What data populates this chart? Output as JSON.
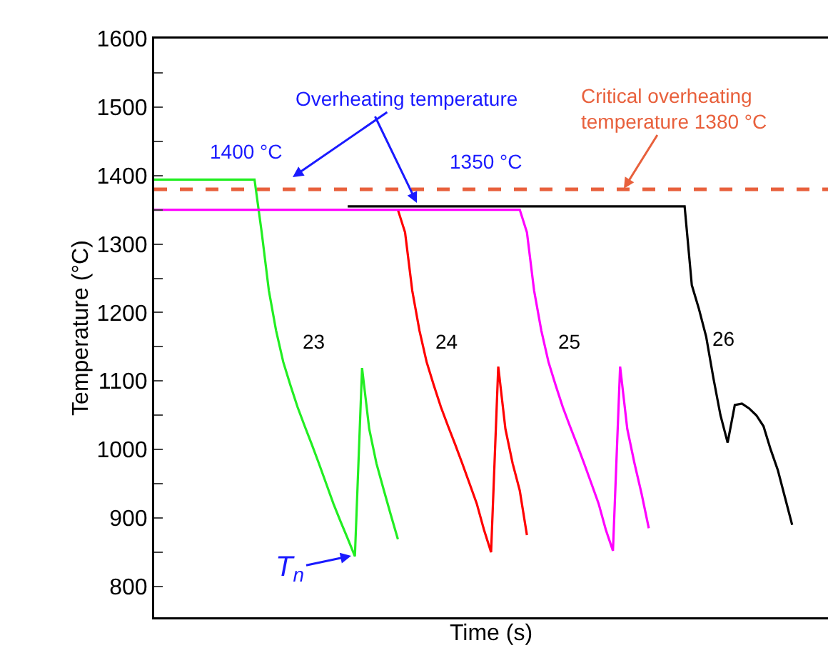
{
  "chart_data": {
    "type": "line",
    "xlabel": "Time (s)",
    "ylabel": "Temperature (°C)",
    "categories": [
      null,
      null,
      null,
      null,
      null,
      null,
      null,
      null,
      null,
      null,
      null,
      null,
      null,
      null,
      null,
      null,
      null,
      null,
      null,
      null,
      null,
      null,
      null,
      null,
      null,
      null,
      null,
      null,
      null,
      null,
      null,
      null,
      null,
      null,
      null,
      null,
      null,
      null,
      null,
      null,
      null,
      null,
      null,
      null,
      null,
      null,
      null,
      null,
      null,
      null,
      null,
      null,
      null,
      null,
      null,
      null,
      null,
      null,
      null,
      null,
      null,
      null,
      null,
      null,
      null,
      null,
      null,
      null,
      null,
      null,
      null,
      null,
      null,
      null,
      null,
      null,
      null,
      null,
      null,
      null,
      null,
      null,
      null,
      null,
      null,
      null,
      null,
      null,
      null,
      null,
      null,
      null,
      null,
      null,
      null
    ],
    "series": [
      {
        "color": "#22ee22",
        "values": [
          1394,
          1394,
          1394,
          1394,
          1394,
          1394,
          1394,
          1394,
          1394,
          1394,
          1394,
          1394,
          1394,
          1394,
          1394,
          1317,
          1232,
          1174,
          1128,
          1094,
          1062,
          1034,
          1007,
          979,
          950,
          921,
          895,
          870,
          844,
          1119,
          1030,
          980,
          942,
          905,
          869,
          null,
          null,
          null,
          null,
          null,
          null,
          null,
          null,
          null,
          null,
          null,
          null,
          null,
          null,
          null,
          null,
          null,
          null,
          null,
          null,
          null,
          null,
          null,
          null,
          null,
          null,
          null,
          null,
          null,
          null,
          null,
          null,
          null,
          null,
          null,
          null,
          null,
          null,
          null,
          null,
          null,
          null,
          null,
          null,
          null,
          null,
          null,
          null,
          null,
          null,
          null,
          null,
          null,
          null,
          null,
          null,
          null,
          null,
          null,
          null
        ]
      },
      {
        "color": "#ff0000",
        "values": [
          null,
          null,
          null,
          null,
          null,
          null,
          null,
          null,
          null,
          null,
          null,
          null,
          null,
          null,
          null,
          null,
          null,
          null,
          null,
          null,
          null,
          null,
          null,
          null,
          null,
          null,
          null,
          null,
          null,
          null,
          null,
          null,
          null,
          null,
          1350,
          1317,
          1232,
          1174,
          1128,
          1094,
          1062,
          1034,
          1007,
          979,
          950,
          921,
          883,
          850,
          1121,
          1030,
          980,
          940,
          875,
          null,
          null,
          null,
          null,
          null,
          null,
          null,
          null,
          null,
          null,
          null,
          null,
          null,
          null,
          null,
          null,
          null,
          null,
          null,
          null,
          null,
          null,
          null,
          null,
          null,
          null,
          null,
          null,
          null,
          null,
          null,
          null,
          null,
          null,
          null,
          null,
          null,
          null,
          null,
          null,
          null,
          null
        ]
      },
      {
        "color": "#ff00ff",
        "values": [
          1350,
          1350,
          1350,
          1350,
          1350,
          1350,
          1350,
          1350,
          1350,
          1350,
          1350,
          1350,
          1350,
          1350,
          1350,
          1350,
          1350,
          1350,
          1350,
          1350,
          1350,
          1350,
          1350,
          1350,
          1350,
          1350,
          1350,
          1350,
          1350,
          1350,
          1350,
          1350,
          1350,
          1350,
          1350,
          1350,
          1350,
          1350,
          1350,
          1350,
          1350,
          1350,
          1350,
          1350,
          1350,
          1350,
          1350,
          1350,
          1350,
          1350,
          1350,
          1350,
          1317,
          1232,
          1174,
          1128,
          1094,
          1062,
          1034,
          1007,
          979,
          950,
          921,
          883,
          852,
          1121,
          1030,
          980,
          935,
          885,
          null,
          null,
          null,
          null,
          null,
          null,
          null,
          null,
          null,
          null,
          null,
          null,
          null,
          null,
          null,
          null,
          null,
          null,
          null,
          null,
          null,
          null,
          null,
          null,
          null
        ]
      },
      {
        "color": "#000000",
        "values": [
          null,
          null,
          null,
          null,
          null,
          null,
          null,
          null,
          null,
          null,
          null,
          null,
          null,
          null,
          null,
          null,
          null,
          null,
          null,
          null,
          null,
          null,
          null,
          null,
          null,
          null,
          null,
          1355,
          1355,
          1355,
          1355,
          1355,
          1355,
          1355,
          1355,
          1355,
          1355,
          1355,
          1355,
          1355,
          1355,
          1355,
          1355,
          1355,
          1355,
          1355,
          1355,
          1355,
          1355,
          1355,
          1355,
          1355,
          1355,
          1355,
          1355,
          1355,
          1355,
          1355,
          1355,
          1355,
          1355,
          1355,
          1355,
          1355,
          1355,
          1355,
          1355,
          1355,
          1355,
          1355,
          1355,
          1355,
          1355,
          1355,
          1355,
          1240,
          1205,
          1165,
          1105,
          1050,
          1010,
          1065,
          1067,
          1060,
          1050,
          1034,
          1000,
          970,
          930,
          890,
          null,
          null,
          null,
          null,
          null
        ]
      }
    ],
    "ylim": [
      755,
      1600
    ],
    "yticks": [
      800,
      {
        "value": 850,
        "label": null
      },
      900,
      {
        "value": 950,
        "label": null
      },
      1000,
      {
        "value": 1050,
        "label": null
      },
      1100,
      {
        "value": 1150,
        "label": null
      },
      1200,
      {
        "value": 1250,
        "label": null
      },
      1300,
      {
        "value": 1350,
        "label": null
      },
      1400,
      {
        "value": 1450,
        "label": null
      },
      1500,
      {
        "value": 1550,
        "label": null
      },
      1600
    ],
    "ref_lines": [
      {
        "axis": "y",
        "value": 1380,
        "label": "Critical overheating\ntemperature 1380 °C",
        "color": "#e8603c",
        "line_style": "dashed"
      }
    ],
    "annotations": [
      "Overheating temperature",
      "1400 °C",
      "1350 °C",
      "23",
      "24",
      "25",
      "26",
      "T$_{n}$"
    ],
    "tick_labels": "y",
    "grid": false,
    "marker": "none",
    "line_style": "solid"
  }
}
